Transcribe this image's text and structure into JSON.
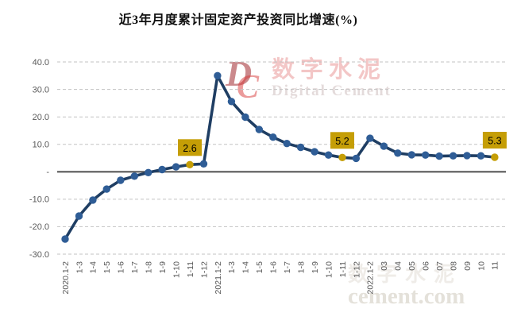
{
  "title": "近3年月度累计固定资产投资同比增速(%)",
  "watermark": {
    "logo_d": "D",
    "logo_c": "C",
    "cn": "数字水泥",
    "en": "Digital Cement",
    "footer_cn": "数字水泥",
    "footer_url": "cement.com"
  },
  "chart_data": {
    "type": "line",
    "title": "近3年月度累计固定资产投资同比增速(%)",
    "categories": [
      "2020.1-2",
      "1-3",
      "1-4",
      "1-5",
      "1-6",
      "1-7",
      "1-8",
      "1-9",
      "1-10",
      "1-11",
      "1-12",
      "2021.1-2",
      "1-3",
      "1-4",
      "1-5",
      "1-6",
      "1-7",
      "1-8",
      "1-9",
      "1-10",
      "1-11",
      "1-12",
      "2022.1-2",
      "03",
      "04",
      "05",
      "06",
      "07",
      "08",
      "09",
      "10",
      "11"
    ],
    "values": [
      -24.5,
      -16.1,
      -10.3,
      -6.3,
      -3.1,
      -1.6,
      -0.3,
      0.8,
      1.8,
      2.6,
      2.9,
      35.0,
      25.6,
      19.9,
      15.4,
      12.6,
      10.3,
      8.9,
      7.3,
      6.1,
      5.2,
      4.9,
      12.2,
      9.3,
      6.8,
      6.2,
      6.1,
      5.7,
      5.8,
      5.9,
      5.8,
      5.3
    ],
    "ylim": [
      -30,
      40
    ],
    "yticks": [
      {
        "label": "40.0",
        "value": 40
      },
      {
        "label": "30.0",
        "value": 30
      },
      {
        "label": "20.0",
        "value": 20
      },
      {
        "label": "10.0",
        "value": 10
      },
      {
        "label": "-",
        "value": 0
      },
      {
        "label": "-10.0",
        "value": -10
      },
      {
        "label": "-20.0",
        "value": -20
      },
      {
        "label": "-30.0",
        "value": -30
      }
    ],
    "grid": "horizontal-dashed",
    "legend": "none",
    "annotations": [
      {
        "index": 9,
        "label": "2.6"
      },
      {
        "index": 20,
        "label": "5.2"
      },
      {
        "index": 31,
        "label": "5.3"
      }
    ],
    "colors": {
      "line": "#1F3E63",
      "marker": "#2F5D96",
      "highlight": "#C59E06",
      "axis_text": "#595959",
      "gridline": "#C3C3C3",
      "zero_line": "#595959",
      "annotation_text": "#000000"
    }
  }
}
